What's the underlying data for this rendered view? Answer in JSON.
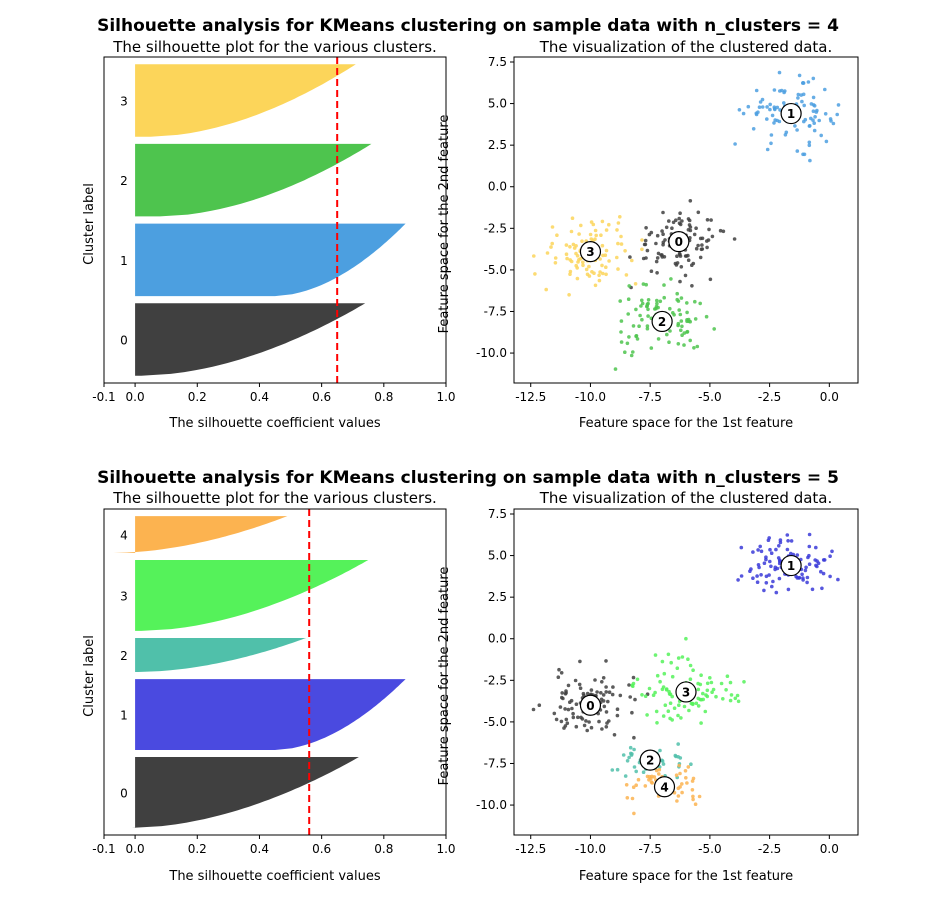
{
  "figures": [
    {
      "suptitle": "Silhouette analysis for KMeans clustering on sample data with n_clusters = 4",
      "silhouette": {
        "title": "The silhouette plot for the various clusters.",
        "xlabel": "The silhouette coefficient values",
        "ylabel": "Cluster label",
        "xticks": [
          "-0.1",
          "0.0",
          "0.2",
          "0.4",
          "0.6",
          "0.8",
          "1.0"
        ]
      },
      "scatter": {
        "title": "The visualization of the clustered data.",
        "xlabel": "Feature space for the 1st feature",
        "ylabel": "Feature space for the 2nd feature",
        "xticks": [
          "-12.5",
          "-10.0",
          "-7.5",
          "-5.0",
          "-2.5",
          "0.0"
        ],
        "yticks": [
          "7.5",
          "5.0",
          "2.5",
          "0.0",
          "-2.5",
          "-5.0",
          "-7.5",
          "-10.0"
        ]
      }
    },
    {
      "suptitle": "Silhouette analysis for KMeans clustering on sample data with n_clusters = 5",
      "silhouette": {
        "title": "The silhouette plot for the various clusters.",
        "xlabel": "The silhouette coefficient values",
        "ylabel": "Cluster label",
        "xticks": [
          "-0.1",
          "0.0",
          "0.2",
          "0.4",
          "0.6",
          "0.8",
          "1.0"
        ]
      },
      "scatter": {
        "title": "The visualization of the clustered data.",
        "xlabel": "Feature space for the 1st feature",
        "ylabel": "Feature space for the 2nd feature",
        "xticks": [
          "-12.5",
          "-10.0",
          "-7.5",
          "-5.0",
          "-2.5",
          "0.0"
        ],
        "yticks": [
          "7.5",
          "5.0",
          "2.5",
          "0.0",
          "-2.5",
          "-5.0",
          "-7.5",
          "-10.0"
        ]
      }
    }
  ],
  "chart_data": [
    {
      "type": "bar",
      "subtype": "silhouette",
      "title": "The silhouette plot for the various clusters.",
      "xlabel": "The silhouette coefficient values",
      "ylabel": "Cluster label",
      "xlim": [
        -0.1,
        1.0
      ],
      "average_silhouette_score": 0.65,
      "reference_line_color": "#ff0000",
      "clusters": [
        {
          "label": "0",
          "color": "#404040",
          "size": 100,
          "max": 0.74,
          "min": 0.02
        },
        {
          "label": "1",
          "color": "#4c9fe0",
          "size": 100,
          "max": 0.87,
          "min": 0.45
        },
        {
          "label": "2",
          "color": "#4ec44e",
          "size": 100,
          "max": 0.76,
          "min": 0.08
        },
        {
          "label": "3",
          "color": "#fcd55a",
          "size": 100,
          "max": 0.71,
          "min": 0.05
        }
      ]
    },
    {
      "type": "scatter",
      "title": "The visualization of the clustered data.",
      "xlabel": "Feature space for the 1st feature",
      "ylabel": "Feature space for the 2nd feature",
      "xlim": [
        -13.2,
        1.2
      ],
      "ylim": [
        -11.8,
        7.8
      ],
      "clusters": [
        {
          "label": "0",
          "color": "#404040",
          "center": [
            -6.3,
            -3.3
          ],
          "spread": [
            1.0,
            1.0
          ],
          "n": 100
        },
        {
          "label": "1",
          "color": "#4c9fe0",
          "center": [
            -1.6,
            4.4
          ],
          "spread": [
            0.9,
            0.9
          ],
          "n": 100
        },
        {
          "label": "2",
          "color": "#4ec44e",
          "center": [
            -7.0,
            -8.1
          ],
          "spread": [
            1.0,
            1.0
          ],
          "n": 100
        },
        {
          "label": "3",
          "color": "#fcd55a",
          "center": [
            -10.0,
            -3.9
          ],
          "spread": [
            1.0,
            1.0
          ],
          "n": 100
        }
      ]
    },
    {
      "type": "bar",
      "subtype": "silhouette",
      "title": "The silhouette plot for the various clusters.",
      "xlabel": "The silhouette coefficient values",
      "ylabel": "Cluster label",
      "xlim": [
        -0.1,
        1.0
      ],
      "average_silhouette_score": 0.56,
      "reference_line_color": "#ff0000",
      "clusters": [
        {
          "label": "0",
          "color": "#404040",
          "size": 100,
          "max": 0.72,
          "min": -0.01
        },
        {
          "label": "1",
          "color": "#4a4ae0",
          "size": 100,
          "max": 0.87,
          "min": 0.45
        },
        {
          "label": "2",
          "color": "#50c0aa",
          "size": 48,
          "max": 0.55,
          "min": 0.01
        },
        {
          "label": "3",
          "color": "#55f25a",
          "size": 100,
          "max": 0.75,
          "min": 0.02
        },
        {
          "label": "4",
          "color": "#fcb350",
          "size": 52,
          "max": 0.49,
          "min": -0.07
        }
      ]
    },
    {
      "type": "scatter",
      "title": "The visualization of the clustered data.",
      "xlabel": "Feature space for the 1st feature",
      "ylabel": "Feature space for the 2nd feature",
      "xlim": [
        -13.2,
        1.2
      ],
      "ylim": [
        -11.8,
        7.8
      ],
      "clusters": [
        {
          "label": "0",
          "color": "#404040",
          "center": [
            -10.0,
            -4.0
          ],
          "spread": [
            1.0,
            1.0
          ],
          "n": 100
        },
        {
          "label": "1",
          "color": "#3a3ad8",
          "center": [
            -1.6,
            4.4
          ],
          "spread": [
            0.9,
            0.9
          ],
          "n": 100
        },
        {
          "label": "2",
          "color": "#50c0aa",
          "center": [
            -7.5,
            -7.3
          ],
          "spread": [
            0.7,
            0.5
          ],
          "n": 48
        },
        {
          "label": "3",
          "color": "#55f25a",
          "center": [
            -6.0,
            -3.2
          ],
          "spread": [
            1.0,
            1.0
          ],
          "n": 100
        },
        {
          "label": "4",
          "color": "#fcb350",
          "center": [
            -6.9,
            -8.9
          ],
          "spread": [
            0.8,
            0.6
          ],
          "n": 52
        }
      ]
    }
  ]
}
